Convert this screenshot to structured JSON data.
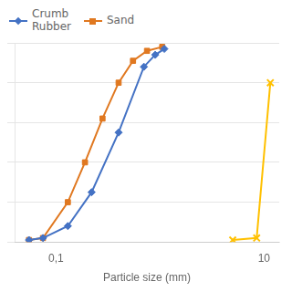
{
  "chart_data": {
    "type": "line",
    "xlabel": "Particle size (mm)",
    "log": "x",
    "xlim": [
      0.04,
      14
    ],
    "xticks": [
      {
        "value": 0.1,
        "label": "0,1"
      },
      10
    ],
    "ylim": [
      0,
      100
    ],
    "yticks": [
      0,
      20,
      40,
      60,
      80,
      100
    ],
    "grid": "y",
    "tick_labels": "x",
    "legend": "upper left",
    "series": [
      {
        "name": "Crumb\nRubber",
        "color": "#4472c4",
        "marker": "diamond",
        "x": [
          0.055,
          0.075,
          0.13,
          0.22,
          0.4,
          0.7,
          0.9,
          1.1
        ],
        "values": [
          1,
          2,
          8,
          25,
          55,
          88,
          94,
          97
        ]
      },
      {
        "name": "Sand",
        "color": "#e07820",
        "marker": "square",
        "x": [
          0.055,
          0.075,
          0.13,
          0.19,
          0.28,
          0.4,
          0.55,
          0.75,
          1.05
        ],
        "values": [
          1,
          2,
          20,
          40,
          62,
          80,
          91,
          96,
          98
        ]
      },
      {
        "color": "#ffc000",
        "marker": "x",
        "x": [
          5.0,
          8.5,
          11.5
        ],
        "values": [
          1,
          2,
          80
        ]
      }
    ]
  }
}
